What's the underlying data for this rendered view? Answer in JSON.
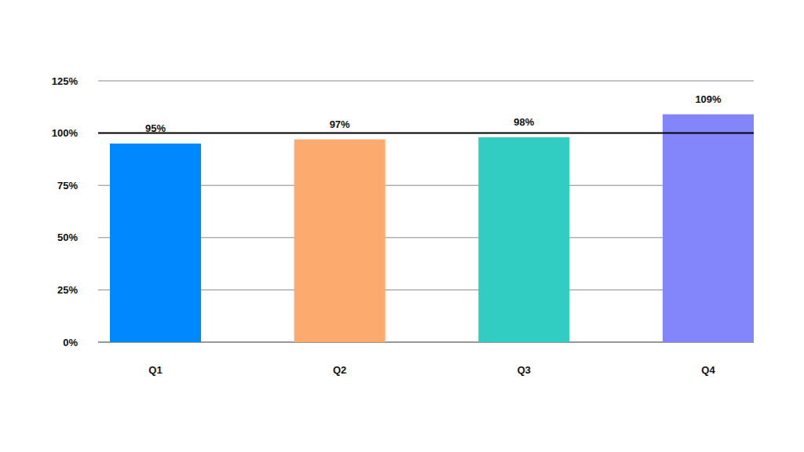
{
  "chart_data": {
    "type": "bar",
    "categories": [
      "Q1",
      "Q2",
      "Q3",
      "Q4"
    ],
    "values": [
      95,
      97,
      98,
      109
    ],
    "value_labels": [
      "95%",
      "97%",
      "98%",
      "109%"
    ],
    "colors": [
      "#0088ff",
      "#fdaa6e",
      "#32cdc2",
      "#8286fa"
    ],
    "ylim": [
      0,
      125
    ],
    "yticks": [
      {
        "value": 0,
        "label": "0%"
      },
      {
        "value": 25,
        "label": "25%"
      },
      {
        "value": 50,
        "label": "50%"
      },
      {
        "value": 75,
        "label": "75%"
      },
      {
        "value": 100,
        "label": "100%"
      },
      {
        "value": 125,
        "label": "125%"
      }
    ],
    "target": 100,
    "grid": true,
    "data_labels": true
  }
}
